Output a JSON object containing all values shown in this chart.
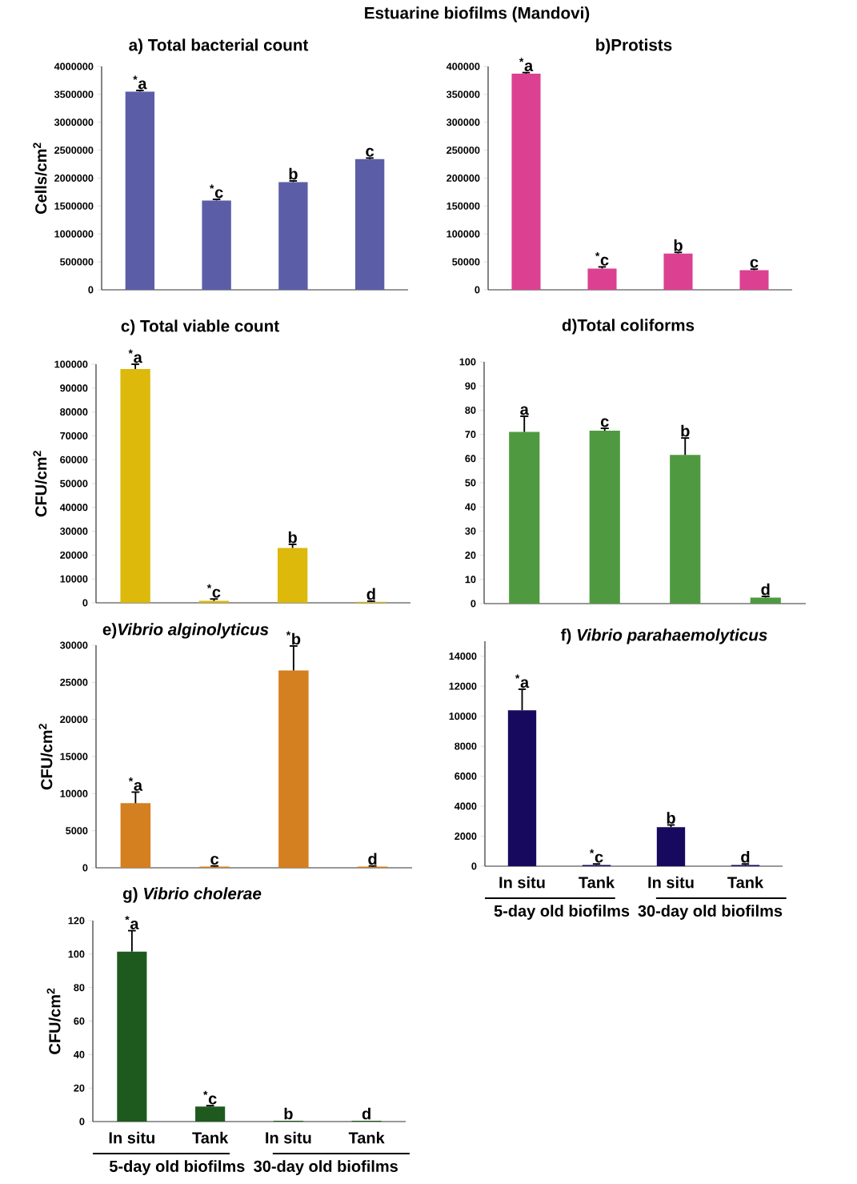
{
  "chart_data": [
    {
      "type": "bar",
      "title": "Estuarine biofilms (Mandovi)",
      "subtitle": "a) Total bacterial count",
      "ylabel": "Cells/cm$^{2}$",
      "categories": [
        null,
        null,
        null,
        null
      ],
      "tick_labels": "y",
      "color": "#5b5ea6",
      "values": [
        3550000,
        1600000,
        1930000,
        2340000
      ],
      "errors": [
        [
          3550000,
          3570000
        ],
        [
          1600000,
          1620000
        ],
        [
          1930000,
          1950000
        ],
        [
          2340000,
          2360000
        ]
      ],
      "value_labels": [
        "$^{*}$a",
        "$^{*}$c",
        "b",
        "c"
      ],
      "ylim": [
        0,
        4000000
      ],
      "yticks": [
        0,
        500000,
        1000000,
        1500000,
        2000000,
        2500000,
        3000000,
        3500000,
        4000000
      ]
    },
    {
      "type": "bar",
      "title": "b)Protists",
      "categories": [
        null,
        null,
        null,
        null
      ],
      "tick_labels": "y",
      "color": "#dc4191",
      "values": [
        387000,
        38000,
        65000,
        35000
      ],
      "errors": [
        [
          387000,
          389000
        ],
        [
          38000,
          41000
        ],
        [
          65000,
          67000
        ],
        [
          35000,
          37000
        ]
      ],
      "value_labels": [
        "$^{*}$a",
        "$^{*}$c",
        "b",
        "c"
      ],
      "ylim": [
        0,
        400000
      ],
      "yticks": [
        0,
        50000,
        100000,
        150000,
        200000,
        250000,
        300000,
        350000,
        400000
      ]
    },
    {
      "type": "bar",
      "title": "c) Total viable count",
      "ylabel": "CFU/cm$^{2}$",
      "categories": [
        null,
        null,
        null,
        null
      ],
      "tick_labels": "y",
      "color": "#dcb90a",
      "values": [
        98000,
        800,
        23000,
        400
      ],
      "errors": [
        [
          98000,
          100000
        ],
        [
          800,
          1600
        ],
        [
          23000,
          24500
        ],
        [
          400,
          700
        ]
      ],
      "value_labels": [
        "$^{*}$a",
        "$^{*}$c",
        "b",
        "d"
      ],
      "ylim": [
        0,
        100000
      ],
      "yticks": [
        0,
        10000,
        20000,
        30000,
        40000,
        50000,
        60000,
        70000,
        80000,
        90000,
        100000
      ]
    },
    {
      "type": "bar",
      "title": "d)Total coliforms",
      "categories": [
        null,
        null,
        null,
        null
      ],
      "tick_labels": "y",
      "color": "#4f9a40",
      "values": [
        71,
        71.5,
        61.5,
        2.5
      ],
      "errors": [
        [
          71,
          77.5
        ],
        [
          71.5,
          72.5
        ],
        [
          61.5,
          68.5
        ],
        [
          2.5,
          3
        ]
      ],
      "value_labels": [
        "a",
        "c",
        "b",
        "d"
      ],
      "ylim": [
        0,
        100
      ],
      "yticks": [
        0,
        10,
        20,
        30,
        40,
        50,
        60,
        70,
        80,
        90,
        100
      ]
    },
    {
      "type": "bar",
      "title": "e)*Vibrio alginolyticus*",
      "ylabel": "CFU/cm$^{2}$",
      "categories": [
        null,
        null,
        null,
        null
      ],
      "tick_labels": "y",
      "color": "#d47f20",
      "values": [
        8700,
        150,
        26600,
        150
      ],
      "errors": [
        [
          8700,
          10200
        ],
        [
          150,
          250
        ],
        [
          26600,
          29900
        ],
        [
          150,
          250
        ]
      ],
      "value_labels": [
        "$^{*}$a",
        "c",
        "$^{*}$b",
        "d"
      ],
      "ylim": [
        0,
        30000
      ],
      "yticks": [
        0,
        5000,
        10000,
        15000,
        20000,
        25000,
        30000
      ]
    },
    {
      "type": "bar",
      "title": "f) *Vibrio parahaemolyticus*",
      "categories": [
        "In situ",
        "Tank",
        "In situ",
        "Tank"
      ],
      "color": "#170a5e",
      "values": [
        10400,
        80,
        2600,
        80
      ],
      "errors": [
        [
          10400,
          11800
        ],
        [
          80,
          150
        ],
        [
          2600,
          2750
        ],
        [
          80,
          150
        ]
      ],
      "value_labels": [
        "$^{*}$a",
        "$^{*}$c",
        "b",
        "d"
      ],
      "annotations": [
        "5-day old biofilms",
        "30-day old biofilms"
      ],
      "ylim": [
        0,
        15000
      ],
      "yticks": [
        0,
        2000,
        4000,
        6000,
        8000,
        10000,
        12000,
        14000
      ]
    },
    {
      "type": "bar",
      "title": "g) *Vibrio cholerae*",
      "ylabel": "CFU/cm$^{2}$",
      "categories": [
        "In situ",
        "Tank",
        "In situ",
        "Tank"
      ],
      "color": "#1e5a1e",
      "values": [
        101.5,
        9,
        0.5,
        0.5
      ],
      "errors": [
        [
          101.5,
          114
        ],
        [
          9,
          9.5
        ],
        null,
        null
      ],
      "value_labels": [
        "$^{*}$a",
        "$^{*}$c",
        "b",
        "d"
      ],
      "annotations": [
        "5-day old biofilms",
        "30-day old biofilms"
      ],
      "ylim": [
        0,
        120
      ],
      "yticks": [
        0,
        20,
        40,
        60,
        80,
        100,
        120
      ]
    }
  ]
}
